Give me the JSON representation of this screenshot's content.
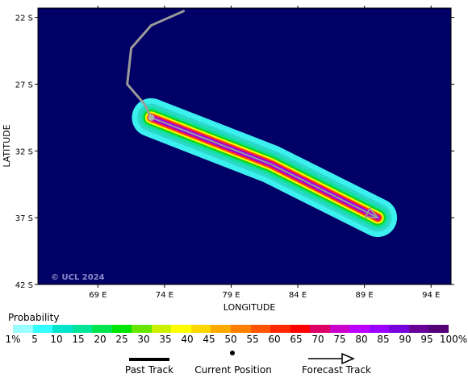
{
  "map": {
    "background_color": "#000066",
    "frame_color": "#000000",
    "lat_ticks": [
      "22 S",
      "27 S",
      "32 S",
      "37 S",
      "42 S"
    ],
    "lon_ticks": [
      "69 E",
      "74 E",
      "79 E",
      "84 E",
      "89 E",
      "94 E"
    ],
    "xlabel": "LONGITUDE",
    "ylabel": "LATITUDE",
    "copyright": "© UCL 2024",
    "past_track": {
      "color": "#9a9a9a",
      "points": [
        [
          75.5,
          21.5
        ],
        [
          73.0,
          22.6
        ],
        [
          71.5,
          24.3
        ],
        [
          71.2,
          27.0
        ],
        [
          72.5,
          28.5
        ],
        [
          73.0,
          29.5
        ]
      ]
    },
    "current_position": [
      73.0,
      29.5
    ],
    "forecast_track": {
      "color": "#9a9a9a",
      "points": [
        [
          73.0,
          29.5
        ],
        [
          82.0,
          33.0
        ],
        [
          90.0,
          37.0
        ]
      ]
    },
    "probability_swath": {
      "center_line": [
        [
          73.0,
          29.5
        ],
        [
          82.0,
          33.0
        ],
        [
          90.0,
          37.0
        ]
      ],
      "bands": [
        {
          "level": 5,
          "color": "#3cf0f0",
          "half_width_deg": 1.45
        },
        {
          "level": 10,
          "color": "#2bd9c8",
          "half_width_deg": 1.05
        },
        {
          "level": 15,
          "color": "#12e0a0",
          "half_width_deg": 0.8
        },
        {
          "level": 25,
          "color": "#15d51a",
          "half_width_deg": 0.6
        },
        {
          "level": 40,
          "color": "#ffff00",
          "half_width_deg": 0.45
        },
        {
          "level": 55,
          "color": "#ff4c00",
          "half_width_deg": 0.33
        },
        {
          "level": 70,
          "color": "#cc0099",
          "half_width_deg": 0.22
        },
        {
          "level": 85,
          "color": "#8b00ff",
          "half_width_deg": 0.12
        }
      ]
    }
  },
  "legend": {
    "title": "Probability",
    "colors": [
      "#99ffff",
      "#33ffff",
      "#00e5cc",
      "#00e599",
      "#00e54d",
      "#00e500",
      "#66e600",
      "#ccf000",
      "#ffff00",
      "#ffd700",
      "#ffaa00",
      "#ff8000",
      "#ff5500",
      "#ff2a00",
      "#ff0000",
      "#dd0066",
      "#cc00cc",
      "#bb00ff",
      "#9900ff",
      "#7700dd",
      "#660099",
      "#550077"
    ],
    "labels": [
      "1%",
      "5",
      "10",
      "15",
      "20",
      "25",
      "30",
      "35",
      "40",
      "45",
      "50",
      "55",
      "60",
      "65",
      "70",
      "75",
      "80",
      "85",
      "90",
      "95",
      "100%"
    ],
    "past_track_label": "Past Track",
    "current_position_label": "Current Position",
    "forecast_track_label": "Forecast Track"
  }
}
